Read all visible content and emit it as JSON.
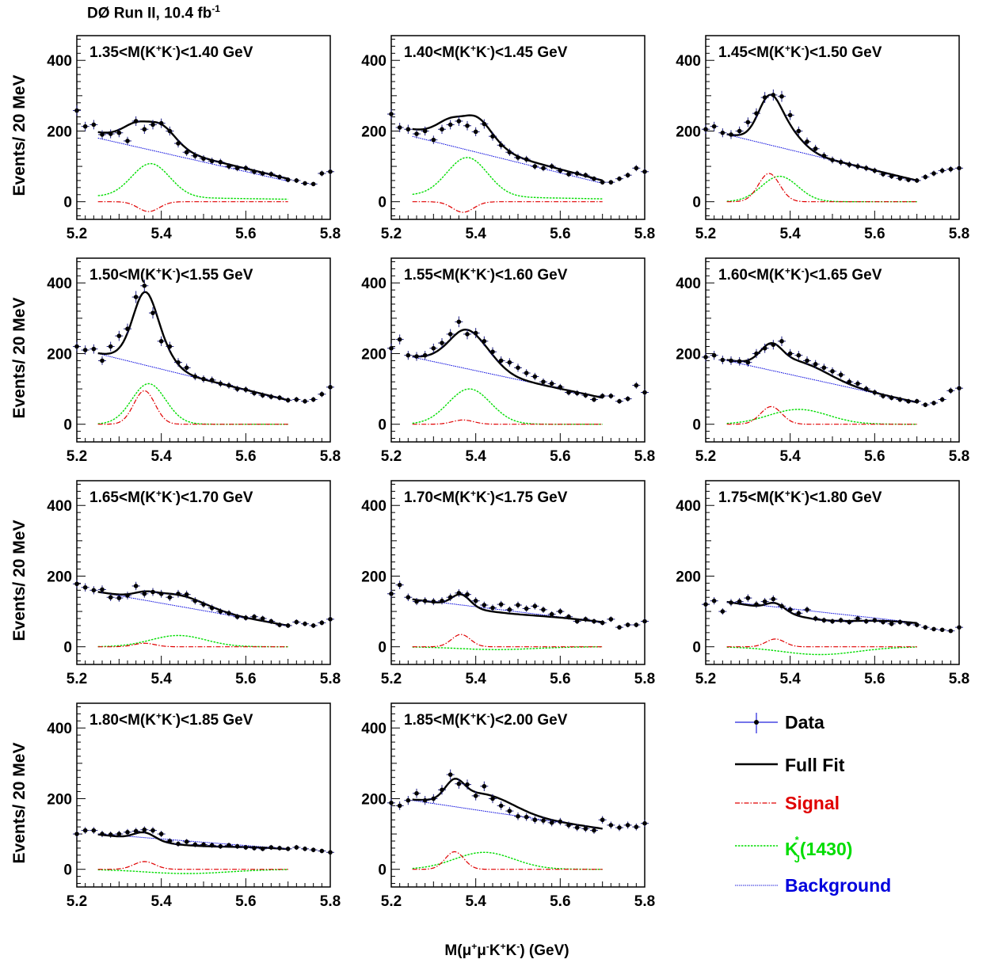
{
  "header": {
    "experiment": "DØ Run II, 10.4 fb",
    "lumi_exp": "-1"
  },
  "x_label": {
    "prefix": "M(",
    "mu": "μ",
    "plus": "+",
    "mu2": "μ",
    "minus": "-",
    "k1": "K",
    "plus2": "+",
    "k2": "K",
    "minus2": "-",
    "suffix": ") (GeV)"
  },
  "y_label": "Events/ 20 MeV",
  "legend": {
    "data": "Data",
    "fit": "Full Fit",
    "signal": "Signal",
    "kj_base": "K",
    "kj_sup": "*",
    "kj_sub": "J",
    "kj_rest": "(1430)",
    "background": "Background"
  },
  "colors": {
    "data": "#1b1b80",
    "fit": "#000000",
    "signal": "#e00000",
    "kj": "#00dd00",
    "background": "#0000dd",
    "legend_bg": "#2222dd"
  },
  "chart_data": [
    {
      "type": "line",
      "label": "1.35<M(K+K-)<1.40 GeV",
      "xlim": [
        5.2,
        5.8
      ],
      "ylim": [
        -50,
        470
      ],
      "xticks": [
        "5.2",
        "5.4",
        "5.6",
        "5.8"
      ],
      "yticks": [
        "0",
        "200",
        "400"
      ],
      "data": {
        "x": [
          5.2,
          5.22,
          5.24,
          5.26,
          5.28,
          5.3,
          5.32,
          5.34,
          5.36,
          5.38,
          5.4,
          5.42,
          5.44,
          5.46,
          5.48,
          5.5,
          5.52,
          5.54,
          5.56,
          5.58,
          5.6,
          5.62,
          5.64,
          5.66,
          5.68,
          5.7,
          5.72,
          5.74,
          5.76,
          5.78,
          5.8
        ],
        "y": [
          258,
          213,
          218,
          190,
          192,
          195,
          172,
          228,
          205,
          218,
          222,
          200,
          165,
          140,
          130,
          122,
          115,
          112,
          100,
          95,
          95,
          85,
          80,
          78,
          70,
          62,
          60,
          52,
          50,
          80,
          85
        ]
      },
      "fit": {
        "bkg": [
          180,
          58
        ],
        "sig": [
          -28,
          5.37,
          0.025
        ],
        "kj": [
          95,
          5.375,
          0.045
        ],
        "kjb": [
          15,
          -8
        ]
      }
    },
    {
      "type": "line",
      "label": "1.40<M(K+K-)<1.45 GeV",
      "xlim": [
        5.2,
        5.8
      ],
      "ylim": [
        -50,
        470
      ],
      "xticks": [
        "5.2",
        "5.4",
        "5.6",
        "5.8"
      ],
      "yticks": [
        "0",
        "200",
        "400"
      ],
      "data": {
        "x": [
          5.2,
          5.22,
          5.24,
          5.26,
          5.28,
          5.3,
          5.32,
          5.34,
          5.36,
          5.38,
          5.4,
          5.42,
          5.44,
          5.46,
          5.48,
          5.5,
          5.52,
          5.54,
          5.56,
          5.58,
          5.6,
          5.62,
          5.64,
          5.66,
          5.68,
          5.7,
          5.72,
          5.74,
          5.76,
          5.78,
          5.8
        ],
        "y": [
          248,
          210,
          205,
          192,
          200,
          175,
          205,
          218,
          228,
          215,
          198,
          220,
          185,
          160,
          140,
          125,
          120,
          100,
          95,
          100,
          88,
          78,
          80,
          75,
          65,
          55,
          55,
          65,
          75,
          95,
          85
        ]
      },
      "fit": {
        "bkg": [
          185,
          52
        ],
        "sig": [
          -30,
          5.37,
          0.025
        ],
        "kj": [
          110,
          5.38,
          0.048
        ],
        "kjb": [
          18,
          -10
        ]
      }
    },
    {
      "type": "line",
      "label": "1.45<M(K+K-)<1.50 GeV",
      "xlim": [
        5.2,
        5.8
      ],
      "ylim": [
        -50,
        470
      ],
      "xticks": [
        "5.2",
        "5.4",
        "5.6",
        "5.8"
      ],
      "yticks": [
        "0",
        "200",
        "400"
      ],
      "data": {
        "x": [
          5.2,
          5.22,
          5.24,
          5.26,
          5.28,
          5.3,
          5.32,
          5.34,
          5.36,
          5.38,
          5.4,
          5.42,
          5.44,
          5.46,
          5.48,
          5.5,
          5.52,
          5.54,
          5.56,
          5.58,
          5.6,
          5.62,
          5.64,
          5.66,
          5.68,
          5.7,
          5.72,
          5.74,
          5.76,
          5.78,
          5.8
        ],
        "y": [
          205,
          213,
          195,
          190,
          200,
          225,
          250,
          295,
          302,
          298,
          245,
          200,
          170,
          150,
          130,
          118,
          112,
          105,
          100,
          95,
          88,
          78,
          72,
          66,
          62,
          60,
          70,
          80,
          88,
          92,
          95
        ]
      },
      "fit": {
        "bkg": [
          190,
          60
        ],
        "sig": [
          80,
          5.35,
          0.025
        ],
        "kj": [
          72,
          5.375,
          0.043
        ],
        "kjb": [
          0,
          0
        ]
      }
    },
    {
      "type": "line",
      "label": "1.50<M(K+K-)<1.55 GeV",
      "xlim": [
        5.2,
        5.8
      ],
      "ylim": [
        -50,
        470
      ],
      "xticks": [
        "5.2",
        "5.4",
        "5.6",
        "5.8"
      ],
      "yticks": [
        "0",
        "200",
        "400"
      ],
      "data": {
        "x": [
          5.2,
          5.22,
          5.24,
          5.26,
          5.28,
          5.3,
          5.32,
          5.34,
          5.36,
          5.38,
          5.4,
          5.42,
          5.44,
          5.46,
          5.48,
          5.5,
          5.52,
          5.54,
          5.56,
          5.58,
          5.6,
          5.62,
          5.64,
          5.66,
          5.68,
          5.7,
          5.72,
          5.74,
          5.76,
          5.78,
          5.8
        ],
        "y": [
          220,
          210,
          213,
          180,
          220,
          250,
          270,
          360,
          392,
          315,
          235,
          220,
          175,
          160,
          135,
          128,
          125,
          115,
          110,
          100,
          98,
          88,
          82,
          78,
          75,
          68,
          70,
          65,
          70,
          85,
          105
        ]
      },
      "fit": {
        "bkg": [
          200,
          68
        ],
        "sig": [
          95,
          5.36,
          0.025
        ],
        "kj": [
          115,
          5.37,
          0.04
        ],
        "kjb": [
          0,
          0
        ]
      }
    },
    {
      "type": "line",
      "label": "1.55<M(K+K-)<1.60 GeV",
      "xlim": [
        5.2,
        5.8
      ],
      "ylim": [
        -50,
        470
      ],
      "xticks": [
        "5.2",
        "5.4",
        "5.6",
        "5.8"
      ],
      "yticks": [
        "0",
        "200",
        "400"
      ],
      "data": {
        "x": [
          5.2,
          5.22,
          5.24,
          5.26,
          5.28,
          5.3,
          5.32,
          5.34,
          5.36,
          5.38,
          5.4,
          5.42,
          5.44,
          5.46,
          5.48,
          5.5,
          5.52,
          5.54,
          5.56,
          5.58,
          5.6,
          5.62,
          5.64,
          5.66,
          5.68,
          5.7,
          5.72,
          5.74,
          5.76,
          5.78,
          5.8
        ],
        "y": [
          215,
          240,
          195,
          192,
          195,
          215,
          230,
          255,
          290,
          255,
          258,
          235,
          205,
          180,
          175,
          160,
          145,
          135,
          120,
          115,
          105,
          90,
          88,
          82,
          70,
          80,
          80,
          65,
          72,
          110,
          90
        ]
      },
      "fit": {
        "bkg": [
          190,
          75
        ],
        "sig": [
          12,
          5.37,
          0.025
        ],
        "kj": [
          100,
          5.385,
          0.05
        ],
        "kjb": [
          0,
          0
        ]
      }
    },
    {
      "type": "line",
      "label": "1.60<M(K+K-)<1.65 GeV",
      "xlim": [
        5.2,
        5.8
      ],
      "ylim": [
        -50,
        470
      ],
      "xticks": [
        "5.2",
        "5.4",
        "5.6",
        "5.8"
      ],
      "yticks": [
        "0",
        "200",
        "400"
      ],
      "data": {
        "x": [
          5.2,
          5.22,
          5.24,
          5.26,
          5.28,
          5.3,
          5.32,
          5.34,
          5.36,
          5.38,
          5.4,
          5.42,
          5.44,
          5.46,
          5.48,
          5.5,
          5.52,
          5.54,
          5.56,
          5.58,
          5.6,
          5.62,
          5.64,
          5.66,
          5.68,
          5.7,
          5.72,
          5.74,
          5.76,
          5.78,
          5.8
        ],
        "y": [
          190,
          195,
          182,
          180,
          178,
          175,
          200,
          215,
          225,
          235,
          200,
          195,
          180,
          170,
          160,
          150,
          140,
          120,
          115,
          100,
          90,
          80,
          75,
          70,
          65,
          65,
          55,
          60,
          70,
          95,
          102
        ]
      },
      "fit": {
        "bkg": [
          180,
          62
        ],
        "sig": [
          50,
          5.355,
          0.025
        ],
        "kj": [
          42,
          5.42,
          0.07
        ],
        "kjb": [
          0,
          0
        ]
      }
    },
    {
      "type": "line",
      "label": "1.65<M(K+K-)<1.70 GeV",
      "xlim": [
        5.2,
        5.8
      ],
      "ylim": [
        -50,
        470
      ],
      "xticks": [
        "5.2",
        "5.4",
        "5.6",
        "5.8"
      ],
      "yticks": [
        "0",
        "200",
        "400"
      ],
      "data": {
        "x": [
          5.2,
          5.22,
          5.24,
          5.26,
          5.28,
          5.3,
          5.32,
          5.34,
          5.36,
          5.38,
          5.4,
          5.42,
          5.44,
          5.46,
          5.48,
          5.5,
          5.52,
          5.54,
          5.56,
          5.58,
          5.6,
          5.62,
          5.64,
          5.66,
          5.68,
          5.7,
          5.72,
          5.74,
          5.76,
          5.78,
          5.8
        ],
        "y": [
          178,
          168,
          160,
          162,
          140,
          138,
          145,
          172,
          150,
          155,
          150,
          140,
          150,
          148,
          130,
          120,
          110,
          100,
          95,
          85,
          82,
          85,
          80,
          72,
          62,
          60,
          70,
          65,
          60,
          68,
          78
        ]
      },
      "fit": {
        "bkg": [
          155,
          60
        ],
        "sig": [
          10,
          5.36,
          0.025
        ],
        "kj": [
          32,
          5.44,
          0.065
        ],
        "kjb": [
          0,
          0
        ]
      }
    },
    {
      "type": "line",
      "label": "1.70<M(K+K-)<1.75 GeV",
      "xlim": [
        5.2,
        5.8
      ],
      "ylim": [
        -50,
        470
      ],
      "xticks": [
        "5.2",
        "5.4",
        "5.6",
        "5.8"
      ],
      "yticks": [
        "0",
        "200",
        "400"
      ],
      "data": {
        "x": [
          5.2,
          5.22,
          5.24,
          5.26,
          5.28,
          5.3,
          5.32,
          5.34,
          5.36,
          5.38,
          5.4,
          5.42,
          5.44,
          5.46,
          5.48,
          5.5,
          5.52,
          5.54,
          5.56,
          5.58,
          5.6,
          5.62,
          5.64,
          5.66,
          5.68,
          5.7,
          5.72,
          5.74,
          5.76,
          5.78,
          5.8
        ],
        "y": [
          150,
          175,
          140,
          128,
          130,
          128,
          130,
          140,
          152,
          148,
          130,
          118,
          110,
          120,
          105,
          118,
          108,
          115,
          105,
          92,
          100,
          85,
          72,
          78,
          72,
          68,
          78,
          55,
          62,
          62,
          72
        ]
      },
      "fit": {
        "bkg": [
          135,
          70
        ],
        "sig": [
          35,
          5.365,
          0.022
        ],
        "kj": [
          -8,
          5.45,
          0.09
        ],
        "kjb": [
          0,
          0
        ]
      }
    },
    {
      "type": "line",
      "label": "1.75<M(K+K-)<1.80 GeV",
      "xlim": [
        5.2,
        5.8
      ],
      "ylim": [
        -50,
        470
      ],
      "xticks": [
        "5.2",
        "5.4",
        "5.6",
        "5.8"
      ],
      "yticks": [
        "0",
        "200",
        "400"
      ],
      "data": {
        "x": [
          5.2,
          5.22,
          5.24,
          5.26,
          5.28,
          5.3,
          5.32,
          5.34,
          5.36,
          5.38,
          5.4,
          5.42,
          5.44,
          5.46,
          5.48,
          5.5,
          5.52,
          5.54,
          5.56,
          5.58,
          5.6,
          5.62,
          5.64,
          5.66,
          5.68,
          5.7,
          5.72,
          5.74,
          5.76,
          5.78,
          5.8
        ],
        "y": [
          120,
          130,
          100,
          125,
          128,
          138,
          120,
          128,
          135,
          115,
          105,
          95,
          105,
          80,
          75,
          72,
          75,
          70,
          80,
          72,
          75,
          70,
          65,
          70,
          65,
          62,
          55,
          50,
          48,
          45,
          55
        ]
      },
      "fit": {
        "bkg": [
          128,
          68
        ],
        "sig": [
          22,
          5.365,
          0.022
        ],
        "kj": [
          -22,
          5.47,
          0.09
        ],
        "kjb": [
          0,
          0
        ]
      }
    },
    {
      "type": "line",
      "label": "1.80<M(K+K-)<1.85 GeV",
      "xlim": [
        5.2,
        5.8
      ],
      "ylim": [
        -50,
        470
      ],
      "xticks": [
        "5.2",
        "5.4",
        "5.6",
        "5.8"
      ],
      "yticks": [
        "0",
        "200",
        "400"
      ],
      "data": {
        "x": [
          5.2,
          5.22,
          5.24,
          5.26,
          5.28,
          5.3,
          5.32,
          5.34,
          5.36,
          5.38,
          5.4,
          5.42,
          5.44,
          5.46,
          5.48,
          5.5,
          5.52,
          5.54,
          5.56,
          5.58,
          5.6,
          5.62,
          5.64,
          5.66,
          5.68,
          5.7,
          5.72,
          5.74,
          5.76,
          5.78,
          5.8
        ],
        "y": [
          100,
          110,
          110,
          100,
          98,
          100,
          105,
          108,
          112,
          110,
          100,
          80,
          72,
          78,
          70,
          70,
          68,
          65,
          68,
          65,
          62,
          60,
          58,
          62,
          60,
          58,
          62,
          58,
          55,
          52,
          48
        ]
      },
      "fit": {
        "bkg": [
          100,
          58
        ],
        "sig": [
          22,
          5.36,
          0.025
        ],
        "kj": [
          -12,
          5.46,
          0.1
        ],
        "kjb": [
          0,
          0
        ]
      }
    },
    {
      "type": "line",
      "label": "1.85<M(K+K-)<2.00 GeV",
      "xlim": [
        5.2,
        5.8
      ],
      "ylim": [
        -50,
        470
      ],
      "xticks": [
        "5.2",
        "5.4",
        "5.6",
        "5.8"
      ],
      "yticks": [
        "0",
        "200",
        "400"
      ],
      "data": {
        "x": [
          5.2,
          5.22,
          5.24,
          5.26,
          5.28,
          5.3,
          5.32,
          5.34,
          5.36,
          5.38,
          5.4,
          5.42,
          5.44,
          5.46,
          5.48,
          5.5,
          5.52,
          5.54,
          5.56,
          5.58,
          5.6,
          5.62,
          5.64,
          5.66,
          5.68,
          5.7,
          5.72,
          5.74,
          5.76,
          5.78,
          5.8
        ],
        "y": [
          188,
          180,
          195,
          215,
          195,
          200,
          225,
          268,
          242,
          240,
          208,
          235,
          200,
          180,
          165,
          150,
          148,
          140,
          138,
          132,
          135,
          125,
          118,
          115,
          110,
          140,
          125,
          118,
          125,
          120,
          130
        ]
      },
      "fit": {
        "bkg": [
          195,
          115
        ],
        "sig": [
          50,
          5.35,
          0.022
        ],
        "kj": [
          48,
          5.42,
          0.07
        ],
        "kjb": [
          0,
          0
        ]
      }
    }
  ]
}
